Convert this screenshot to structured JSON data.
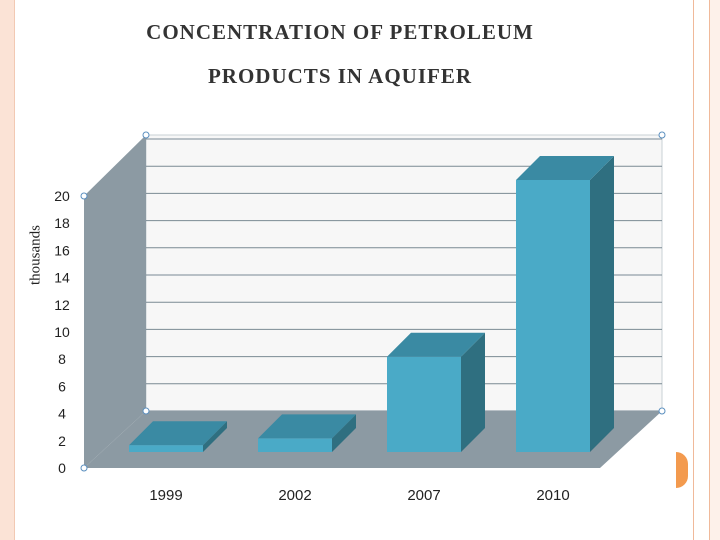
{
  "slide": {
    "title_line1": "CONCENTRATION OF  PETROLEUM",
    "title_line2": "PRODUCTS IN  AQUIFER",
    "colors": {
      "bar_front": "#4aaac7",
      "bar_top": "#3a8aa3",
      "bar_side": "#2f6f80",
      "left_wall": "#8c9aa3",
      "floor": "#8c9aa3",
      "back_wall": "#f7f7f7",
      "accent_orange": "#f39a4e",
      "left_strip": "#fbe3d6"
    }
  },
  "chart_data": {
    "type": "bar",
    "title": "CONCENTRATION OF  PETROLEUM PRODUCTS IN  AQUIFER",
    "ylabel": "thousands",
    "xlabel": "",
    "categories": [
      "1999",
      "2002",
      "2007",
      "2010"
    ],
    "values": [
      0.5,
      1,
      7,
      20
    ],
    "ylim": [
      0,
      20
    ],
    "yticks": [
      0,
      2,
      4,
      6,
      8,
      10,
      12,
      14,
      16,
      18,
      20
    ],
    "grid": true,
    "style": "3d-bar"
  }
}
